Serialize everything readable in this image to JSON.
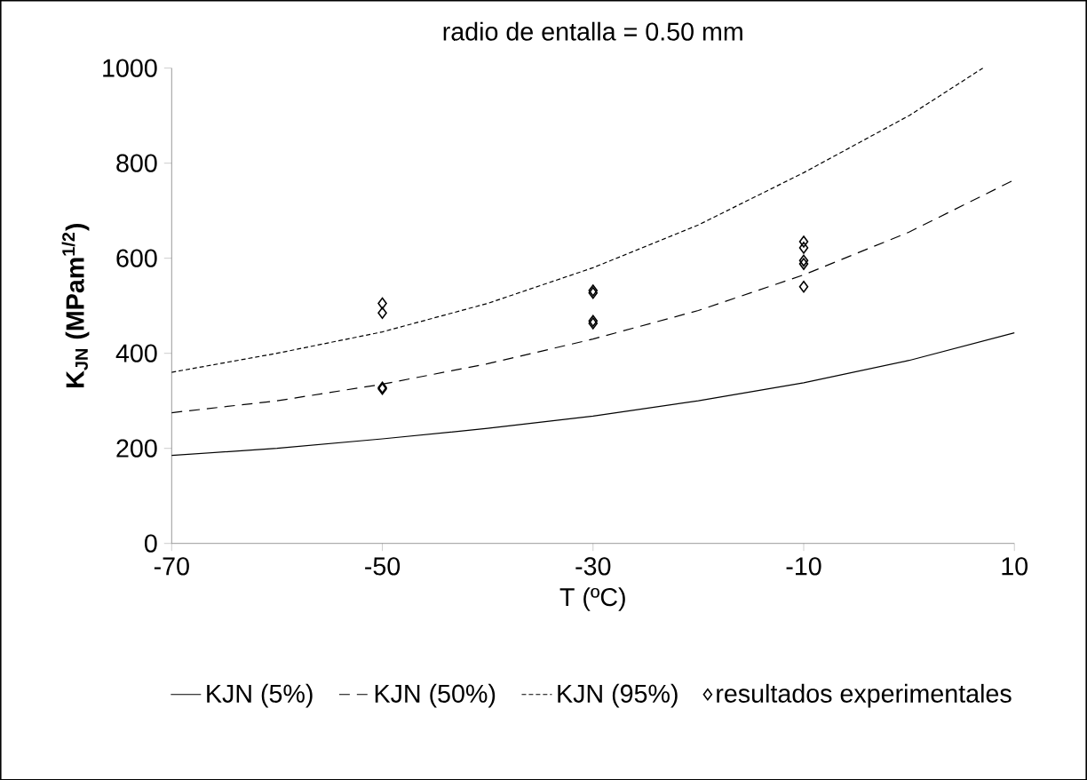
{
  "chart_data": {
    "type": "line",
    "title": "radio de entalla = 0.50 mm",
    "xlabel": "T (ºC)",
    "ylabel": "**K$_{JN}$ (MPam$^{1/2}$)**",
    "xlim": [
      -70,
      10
    ],
    "ylim": [
      0,
      1000
    ],
    "xticks": [
      -70,
      -50,
      -30,
      -10,
      10
    ],
    "yticks": [
      0,
      200,
      400,
      600,
      800,
      1000
    ],
    "legend": "bottom",
    "series": [
      {
        "name": "KJN (5%)",
        "color": "#000000",
        "line_style": "solid",
        "x": [
          -70,
          -60,
          -50,
          -40,
          -30,
          -20,
          -10,
          0,
          10
        ],
        "values": [
          185,
          200,
          220,
          242,
          268,
          300,
          338,
          385,
          443
        ]
      },
      {
        "name": "KJN (50%)",
        "color": "#000000",
        "line_style": "dashed",
        "x": [
          -70,
          -60,
          -50,
          -40,
          -30,
          -20,
          -10,
          0,
          10
        ],
        "values": [
          275,
          300,
          335,
          378,
          430,
          490,
          565,
          655,
          765
        ]
      },
      {
        "name": "KJN (95%)",
        "color": "#000000",
        "line_style": "dotted",
        "x": [
          -70,
          -60,
          -50,
          -40,
          -30,
          -20,
          -10,
          0,
          7
        ],
        "values": [
          360,
          400,
          445,
          505,
          580,
          670,
          780,
          900,
          1000
        ]
      },
      {
        "name": "resultados experimentales",
        "type": "scatter",
        "marker": "diamond",
        "color": "#000000",
        "x": [
          -50,
          -50,
          -50,
          -50,
          -30,
          -30,
          -30,
          -30,
          -10,
          -10,
          -10,
          -10,
          -10
        ],
        "values": [
          505,
          485,
          328,
          325,
          532,
          527,
          468,
          463,
          635,
          622,
          595,
          588,
          540
        ]
      }
    ]
  }
}
